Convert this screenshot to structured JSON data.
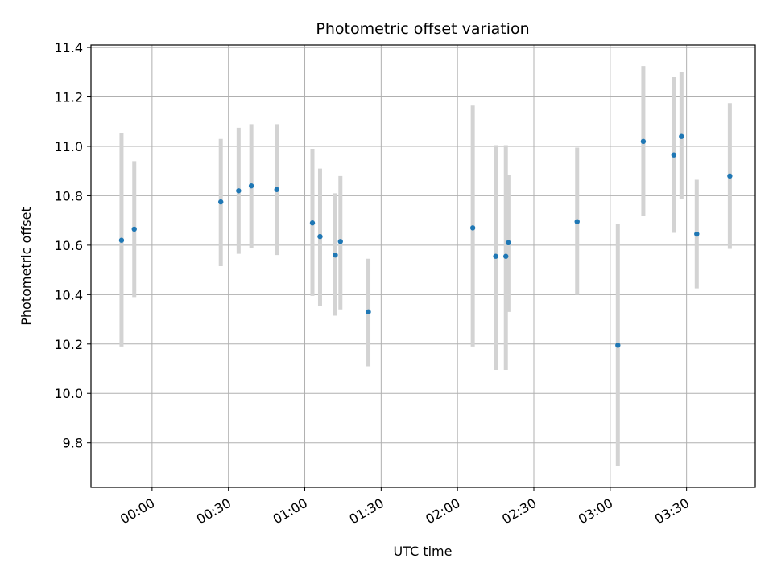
{
  "chart_data": {
    "type": "scatter",
    "title": "Photometric offset variation",
    "xlabel": "UTC time",
    "ylabel": "Photometric offset",
    "x_unit": "HH:MM",
    "xlim": [
      "23:36",
      "03:57"
    ],
    "ylim": [
      9.62,
      11.41
    ],
    "xticks": [
      "00:00",
      "00:30",
      "01:00",
      "01:30",
      "02:00",
      "02:30",
      "03:00",
      "03:30"
    ],
    "yticks": [
      "9.8",
      "10.0",
      "10.2",
      "10.4",
      "10.6",
      "10.8",
      "11.0",
      "11.2",
      "11.4"
    ],
    "grid": true,
    "colors": {
      "point": "#1f77b4",
      "errorbar": "#d3d3d3",
      "grid": "#b0b0b0"
    },
    "points": [
      {
        "x": "23:48",
        "y": 10.62,
        "ylow": 10.19,
        "yhigh": 11.055
      },
      {
        "x": "23:53",
        "y": 10.665,
        "ylow": 10.39,
        "yhigh": 10.94
      },
      {
        "x": "00:27",
        "y": 10.775,
        "ylow": 10.515,
        "yhigh": 11.03
      },
      {
        "x": "00:34",
        "y": 10.82,
        "ylow": 10.565,
        "yhigh": 11.075
      },
      {
        "x": "00:39",
        "y": 10.84,
        "ylow": 10.59,
        "yhigh": 11.09
      },
      {
        "x": "00:49",
        "y": 10.825,
        "ylow": 10.56,
        "yhigh": 11.09
      },
      {
        "x": "01:03",
        "y": 10.69,
        "ylow": 10.395,
        "yhigh": 10.99
      },
      {
        "x": "01:06",
        "y": 10.635,
        "ylow": 10.355,
        "yhigh": 10.91
      },
      {
        "x": "01:12",
        "y": 10.56,
        "ylow": 10.315,
        "yhigh": 10.81
      },
      {
        "x": "01:14",
        "y": 10.615,
        "ylow": 10.34,
        "yhigh": 10.88
      },
      {
        "x": "01:25",
        "y": 10.33,
        "ylow": 10.11,
        "yhigh": 10.545
      },
      {
        "x": "02:06",
        "y": 10.67,
        "ylow": 10.19,
        "yhigh": 11.165
      },
      {
        "x": "02:15",
        "y": 10.555,
        "ylow": 10.095,
        "yhigh": 11.005
      },
      {
        "x": "02:19",
        "y": 10.555,
        "ylow": 10.095,
        "yhigh": 11.005
      },
      {
        "x": "02:20",
        "y": 10.61,
        "ylow": 10.33,
        "yhigh": 10.885
      },
      {
        "x": "02:47",
        "y": 10.695,
        "ylow": 10.4,
        "yhigh": 10.995
      },
      {
        "x": "03:03",
        "y": 10.195,
        "ylow": 9.705,
        "yhigh": 10.685
      },
      {
        "x": "03:13",
        "y": 11.02,
        "ylow": 10.72,
        "yhigh": 11.325
      },
      {
        "x": "03:25",
        "y": 10.965,
        "ylow": 10.65,
        "yhigh": 11.28
      },
      {
        "x": "03:28",
        "y": 11.04,
        "ylow": 10.785,
        "yhigh": 11.3
      },
      {
        "x": "03:34",
        "y": 10.645,
        "ylow": 10.425,
        "yhigh": 10.865
      },
      {
        "x": "03:47",
        "y": 10.88,
        "ylow": 10.585,
        "yhigh": 11.175
      }
    ]
  }
}
